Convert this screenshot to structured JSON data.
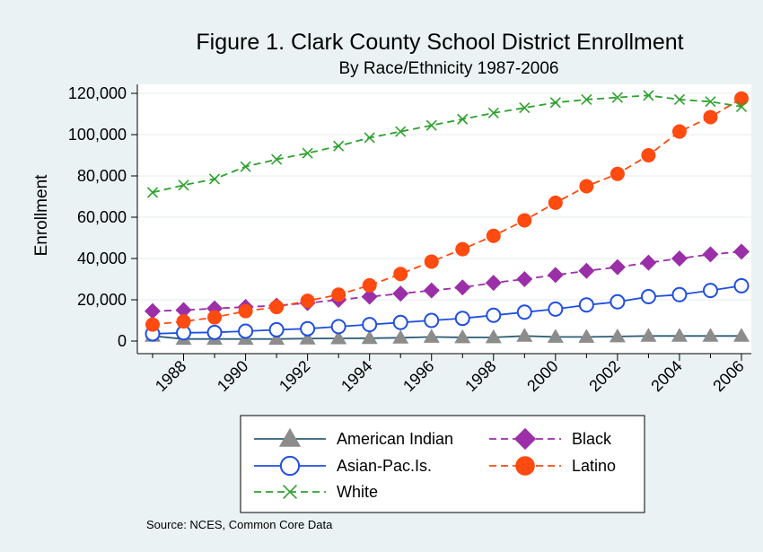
{
  "chart_data": {
    "type": "line",
    "title": "Figure 1. Clark County School District Enrollment",
    "subtitle": "By Race/Ethnicity 1987-2006",
    "xlabel": "",
    "ylabel": "Enrollment",
    "x": [
      1987,
      1988,
      1989,
      1990,
      1991,
      1992,
      1993,
      1994,
      1995,
      1996,
      1997,
      1998,
      1999,
      2000,
      2001,
      2002,
      2003,
      2004,
      2005,
      2006
    ],
    "xlim": [
      1987,
      2006
    ],
    "ylim": [
      0,
      120000
    ],
    "x_ticks": [
      1988,
      1990,
      1992,
      1994,
      1996,
      1998,
      2000,
      2002,
      2004,
      2006
    ],
    "y_ticks": [
      0,
      20000,
      40000,
      60000,
      80000,
      100000,
      120000
    ],
    "y_tick_labels": [
      "0",
      "20,000",
      "40,000",
      "60,000",
      "80,000",
      "100,000",
      "120,000"
    ],
    "grid": "horizontal",
    "legend_position": "bottom",
    "series": [
      {
        "name": "American Indian",
        "color": "#2d5f78",
        "marker": "triangle",
        "dash": "solid",
        "values": [
          2500,
          1000,
          1000,
          1000,
          1000,
          1200,
          1300,
          1400,
          1600,
          2000,
          1800,
          1800,
          2500,
          2000,
          2000,
          2200,
          2500,
          2500,
          2500,
          2500
        ]
      },
      {
        "name": "Black",
        "color": "#9b2fa8",
        "marker": "diamond",
        "dash": "dashed",
        "values": [
          14500,
          15000,
          15800,
          16500,
          17200,
          18400,
          20000,
          21500,
          23000,
          24500,
          26000,
          28200,
          30000,
          32000,
          34000,
          35800,
          38000,
          40000,
          42000,
          43300
        ]
      },
      {
        "name": "Asian-Pac.Is.",
        "color": "#1f4fe0",
        "marker": "circle-open",
        "dash": "solid",
        "values": [
          3500,
          4000,
          4200,
          4800,
          5500,
          6000,
          7000,
          8000,
          9000,
          10000,
          11000,
          12500,
          14000,
          15500,
          17500,
          19000,
          21500,
          22500,
          24500,
          26800
        ]
      },
      {
        "name": "Latino",
        "color": "#ff4a10",
        "marker": "circle",
        "dash": "dashed",
        "values": [
          8000,
          9500,
          11500,
          14500,
          16500,
          19500,
          22500,
          27000,
          32500,
          38500,
          44500,
          51000,
          58500,
          67000,
          75000,
          81000,
          90000,
          101500,
          108500,
          117500
        ]
      },
      {
        "name": "White",
        "color": "#2ea12e",
        "marker": "x",
        "dash": "dashed",
        "values": [
          72000,
          75500,
          78500,
          84500,
          88000,
          91000,
          94500,
          98500,
          101500,
          104500,
          107500,
          110500,
          113000,
          115500,
          117000,
          118000,
          119000,
          117000,
          116000,
          113500
        ]
      }
    ],
    "legend_layout": [
      [
        "American Indian",
        "Black"
      ],
      [
        "Asian-Pac.Is.",
        "Latino"
      ],
      [
        "White"
      ]
    ],
    "note": "Source: NCES, Common Core Data"
  }
}
